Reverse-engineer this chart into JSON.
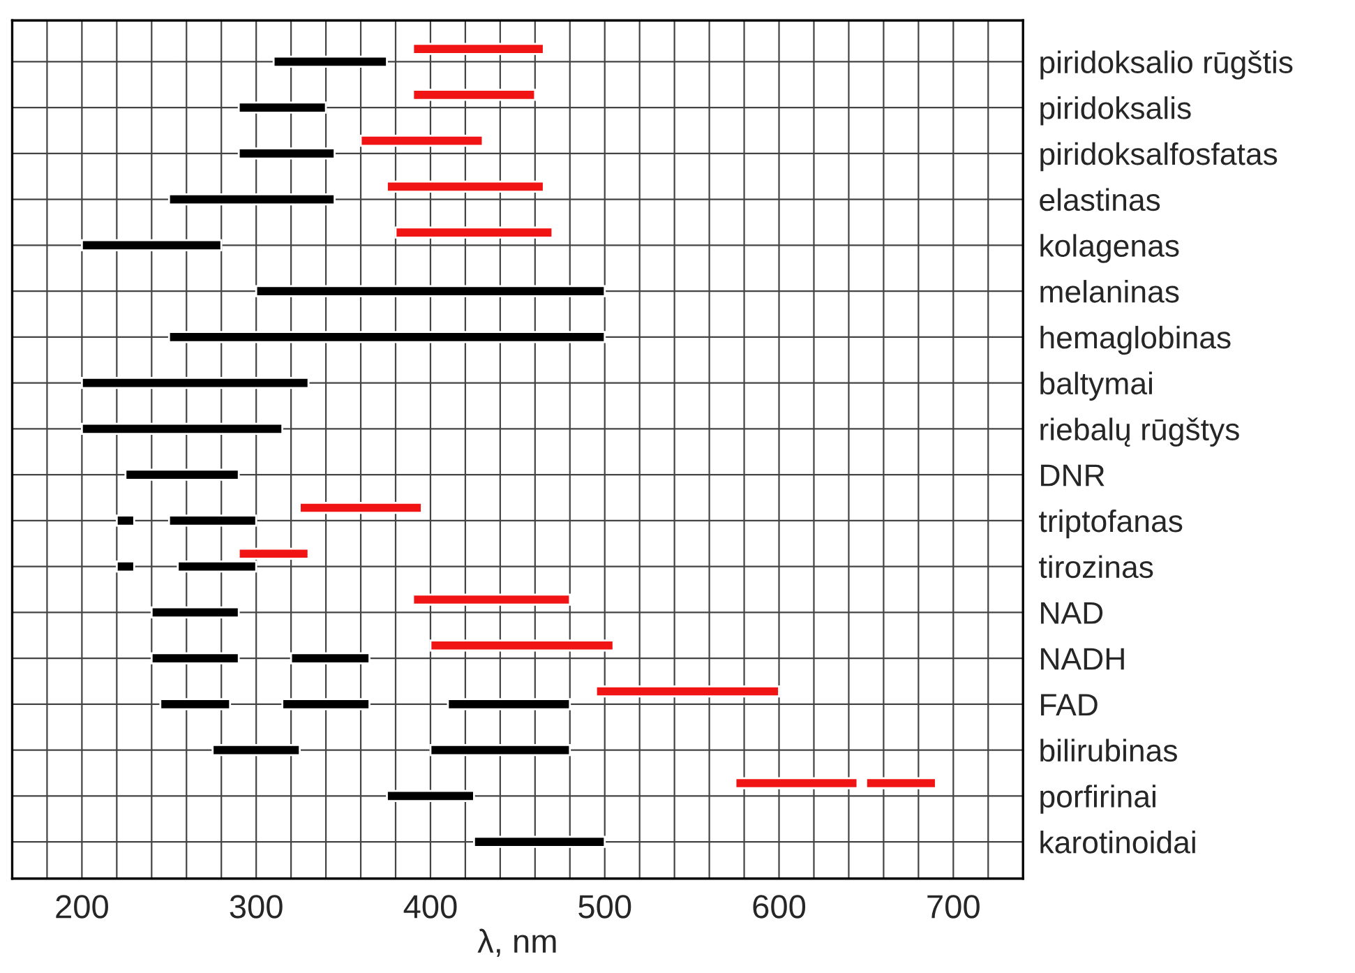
{
  "chart_data": {
    "type": "bar",
    "orientation": "horizontal",
    "xlabel": "λ, nm",
    "categories": [
      "piridoksalio rūgštis",
      "piridoksalis",
      "piridoksalfosfatas",
      "elastinas",
      "kolagenas",
      "melaninas",
      "hemaglobinas",
      "baltymai",
      "riebalų rūgštys",
      "DNR",
      "triptofanas",
      "tirozinas",
      "NAD",
      "NADH",
      "FAD",
      "bilirubinas",
      "porfirinai",
      "karotinoidai"
    ],
    "series": [
      {
        "color": "#000000",
        "base": [
          310,
          290,
          290,
          250,
          200,
          300,
          250,
          200,
          200,
          225,
          220,
          220,
          240,
          240,
          245,
          275,
          375,
          425
        ],
        "values": [
          65,
          50,
          55,
          95,
          80,
          200,
          250,
          130,
          115,
          65,
          10,
          10,
          50,
          50,
          40,
          50,
          50,
          75
        ]
      },
      {
        "color": "#000000",
        "base": [
          null,
          null,
          null,
          null,
          null,
          null,
          null,
          null,
          null,
          null,
          250,
          255,
          null,
          320,
          315,
          400,
          null,
          null
        ],
        "values": [
          null,
          null,
          null,
          null,
          null,
          null,
          null,
          null,
          null,
          null,
          50,
          45,
          null,
          45,
          50,
          80,
          null,
          null
        ]
      },
      {
        "color": "#000000",
        "base": [
          null,
          null,
          null,
          null,
          null,
          null,
          null,
          null,
          null,
          null,
          null,
          null,
          null,
          null,
          410,
          null,
          null,
          null
        ],
        "values": [
          null,
          null,
          null,
          null,
          null,
          null,
          null,
          null,
          null,
          null,
          null,
          null,
          null,
          null,
          70,
          null,
          null,
          null
        ]
      },
      {
        "color": "#f01414",
        "base": [
          390,
          390,
          360,
          375,
          380,
          null,
          null,
          null,
          null,
          null,
          325,
          290,
          390,
          400,
          495,
          null,
          575,
          null
        ],
        "values": [
          75,
          70,
          70,
          90,
          90,
          null,
          null,
          null,
          null,
          null,
          70,
          40,
          90,
          105,
          105,
          null,
          70,
          null
        ]
      },
      {
        "color": "#f01414",
        "base": [
          null,
          null,
          null,
          null,
          null,
          null,
          null,
          null,
          null,
          null,
          null,
          null,
          null,
          null,
          null,
          null,
          650,
          null
        ],
        "values": [
          null,
          null,
          null,
          null,
          null,
          null,
          null,
          null,
          null,
          null,
          null,
          null,
          null,
          null,
          null,
          null,
          40,
          null
        ]
      }
    ],
    "xlim": [
      160,
      740
    ],
    "xticks": [
      {
        "value": 160,
        "label": null
      },
      {
        "value": 180,
        "label": null
      },
      200,
      {
        "value": 220,
        "label": null
      },
      {
        "value": 240,
        "label": null
      },
      {
        "value": 260,
        "label": null
      },
      {
        "value": 280,
        "label": null
      },
      300,
      {
        "value": 320,
        "label": null
      },
      {
        "value": 340,
        "label": null
      },
      {
        "value": 360,
        "label": null
      },
      {
        "value": 380,
        "label": null
      },
      400,
      {
        "value": 420,
        "label": null
      },
      {
        "value": 440,
        "label": null
      },
      {
        "value": 460,
        "label": null
      },
      {
        "value": 480,
        "label": null
      },
      500,
      {
        "value": 520,
        "label": null
      },
      {
        "value": 540,
        "label": null
      },
      {
        "value": 560,
        "label": null
      },
      {
        "value": 580,
        "label": null
      },
      600,
      {
        "value": 620,
        "label": null
      },
      {
        "value": 640,
        "label": null
      },
      {
        "value": 660,
        "label": null
      },
      {
        "value": 680,
        "label": null
      },
      700,
      {
        "value": 720,
        "label": null
      },
      {
        "value": 740,
        "label": null
      }
    ],
    "grid": true
  }
}
